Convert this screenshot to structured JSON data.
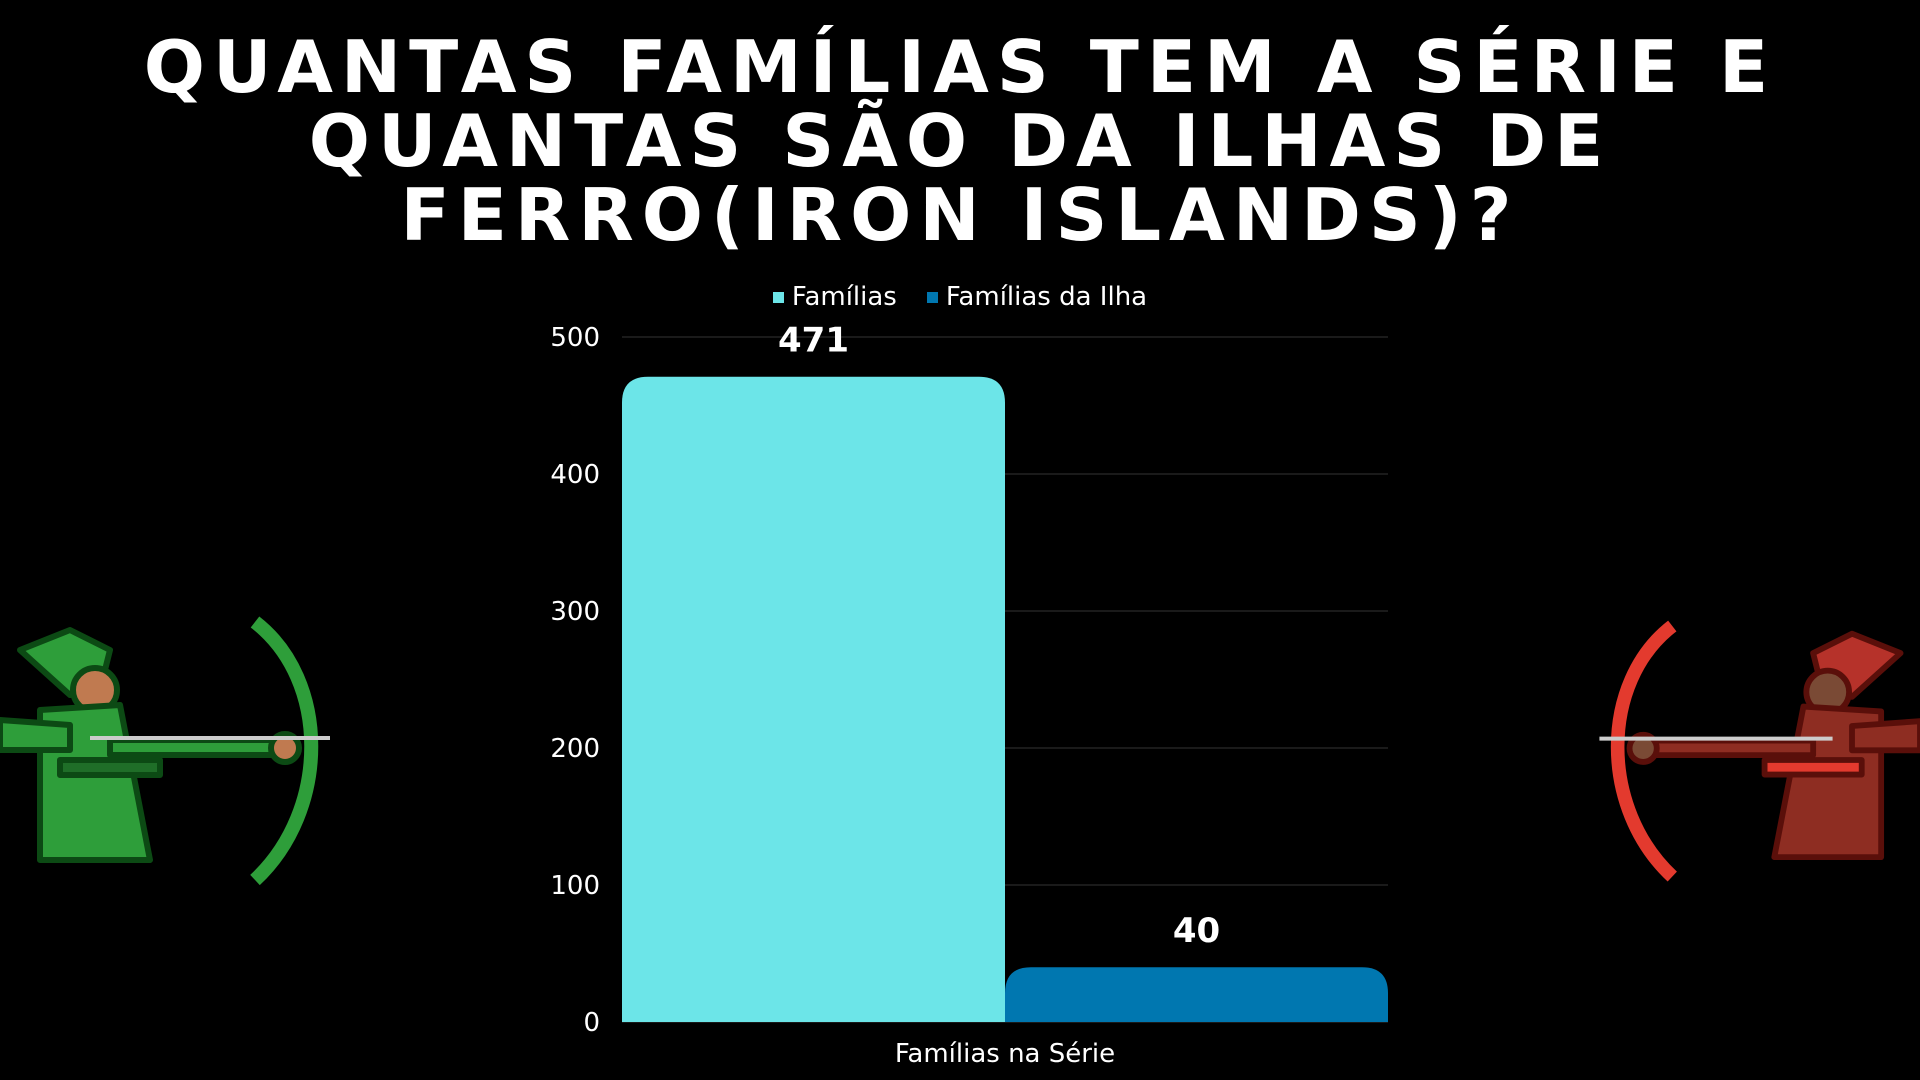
{
  "title": {
    "line1": "Quantas Famílias tem a série e",
    "line2": "quantas são da ilhas de",
    "line3": "ferro(Iron Islands)?"
  },
  "colors": {
    "background": "#000000",
    "familias": "#6ce5e8",
    "familias_ilha": "#0077b0",
    "archer_left": "#2e9e3a",
    "archer_right": "#d83a2e"
  },
  "decorations": {
    "left": "green-archer-illustration",
    "right": "red-archer-illustration"
  },
  "chart_data": {
    "type": "bar",
    "categories": [
      "Famílias na Série"
    ],
    "series": [
      {
        "name": "Famílias",
        "values": [
          471
        ]
      },
      {
        "name": "Famílias da Ilha",
        "values": [
          40
        ]
      }
    ],
    "data_labels": [
      "471",
      "40"
    ],
    "ylim": [
      0,
      500
    ],
    "yticks": [
      0,
      100,
      200,
      300,
      400,
      500
    ],
    "grid": true,
    "legend": "top"
  }
}
